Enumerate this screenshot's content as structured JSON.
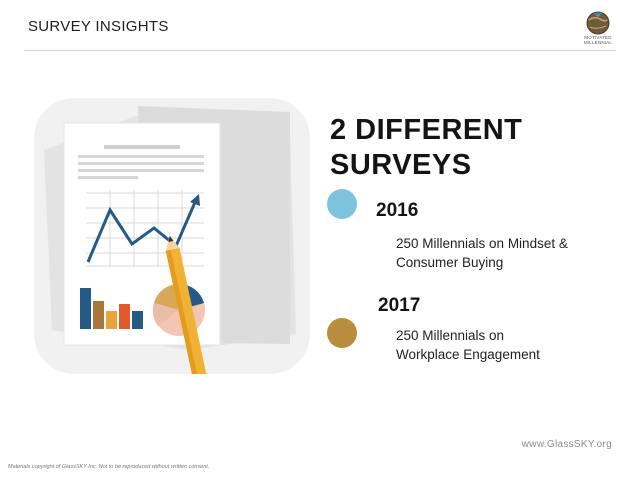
{
  "header": {
    "title": "SURVEY INSIGHTS"
  },
  "logo": {
    "icon": "globe-icon",
    "line1": "MOTIVATED",
    "line2": "MILLENNIAL"
  },
  "main": {
    "heading_line1": "2 DIFFERENT",
    "heading_line2": "SURVEYS",
    "surveys": [
      {
        "year": "2016",
        "line1": "250 Millennials on Mindset &",
        "line2": "Consumer Buying",
        "color": "#7ec3de"
      },
      {
        "year": "2017",
        "line1": "250 Millennials on",
        "line2": "Workplace Engagement",
        "color": "#b98d3e"
      }
    ]
  },
  "illustration": {
    "icon": "report-with-pencil-icon"
  },
  "footer": {
    "url": "www.GlassSKY.org",
    "copyright": "Materials copyright of GlassSKY Inc. Not to be reproduced without written consent."
  }
}
